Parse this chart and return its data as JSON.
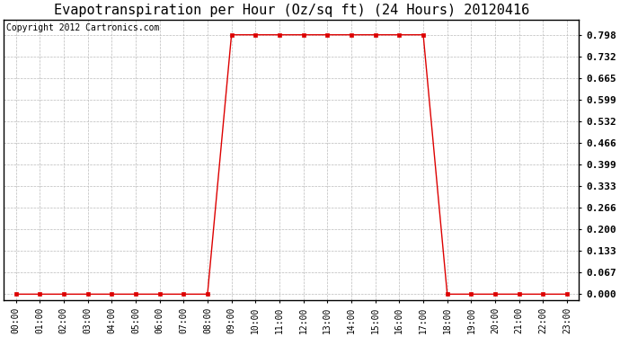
{
  "title": "Evapotranspiration per Hour (Oz/sq ft) (24 Hours) 20120416",
  "copyright_text": "Copyright 2012 Cartronics.com",
  "hours": [
    "00:00",
    "01:00",
    "02:00",
    "03:00",
    "04:00",
    "05:00",
    "06:00",
    "07:00",
    "08:00",
    "09:00",
    "10:00",
    "11:00",
    "12:00",
    "13:00",
    "14:00",
    "15:00",
    "16:00",
    "17:00",
    "18:00",
    "19:00",
    "20:00",
    "21:00",
    "22:00",
    "23:00"
  ],
  "x_values": [
    0,
    1,
    2,
    3,
    4,
    5,
    6,
    7,
    8,
    9,
    10,
    11,
    12,
    13,
    14,
    15,
    16,
    17,
    18,
    19,
    20,
    21,
    22,
    23
  ],
  "y_values": [
    0.0,
    0.0,
    0.0,
    0.0,
    0.0,
    0.0,
    0.0,
    0.0,
    0.0,
    0.798,
    0.798,
    0.798,
    0.798,
    0.798,
    0.798,
    0.798,
    0.798,
    0.798,
    0.0,
    0.0,
    0.0,
    0.0,
    0.0,
    0.0
  ],
  "line_color": "#dd0000",
  "marker": "s",
  "marker_size": 2.5,
  "marker_color": "#dd0000",
  "background_color": "#ffffff",
  "grid_color": "#bbbbbb",
  "title_fontsize": 11,
  "yticks": [
    0.0,
    0.067,
    0.133,
    0.2,
    0.266,
    0.333,
    0.399,
    0.466,
    0.532,
    0.599,
    0.665,
    0.732,
    0.798
  ],
  "ylim": [
    -0.018,
    0.845
  ],
  "ylabel_fontsize": 8,
  "xlabel_fontsize": 7,
  "copyright_fontsize": 7
}
